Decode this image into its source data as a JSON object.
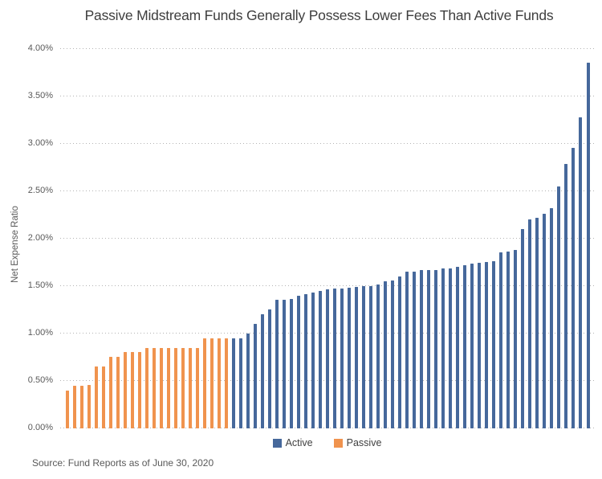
{
  "header": {
    "title": "Passive Midstream Funds Generally Possess Lower Fees Than Active Funds"
  },
  "y_axis": {
    "label": "Net Expense Ratio",
    "ticks": [
      "4.00%",
      "3.50%",
      "3.00%",
      "2.50%",
      "2.00%",
      "1.50%",
      "1.00%",
      "0.50%",
      "0.00%"
    ]
  },
  "legend": {
    "items": [
      {
        "label": "Active",
        "color": "#46689B"
      },
      {
        "label": "Passive",
        "color": "#F0934E"
      }
    ]
  },
  "footer": {
    "source": "Source: Fund Reports as of June 30, 2020"
  },
  "chart_data": {
    "type": "bar",
    "title": "Passive Midstream Funds Generally Possess Lower Fees Than Active Funds",
    "xlabel": "",
    "ylabel": "Net Expense Ratio",
    "ylim": [
      0,
      4.0
    ],
    "ytick_step": 0.5,
    "ytick_format": "0.00%",
    "grid": "dotted-horizontal",
    "legend_position": "bottom-center",
    "x_axis_labels": "none (one bar per fund, sorted ascending by expense ratio; passive funds cluster at the low end)",
    "series": [
      {
        "name": "Passive",
        "color": "#F0934E",
        "values": [
          0.4,
          0.45,
          0.45,
          0.46,
          0.65,
          0.65,
          0.75,
          0.75,
          0.8,
          0.8,
          0.8,
          0.85,
          0.85,
          0.85,
          0.85,
          0.85,
          0.85,
          0.85,
          0.85,
          0.95,
          0.95,
          0.95,
          0.95
        ]
      },
      {
        "name": "Active",
        "color": "#46689B",
        "values": [
          0.95,
          0.95,
          1.0,
          1.1,
          1.2,
          1.25,
          1.35,
          1.35,
          1.36,
          1.4,
          1.41,
          1.43,
          1.45,
          1.46,
          1.47,
          1.47,
          1.48,
          1.49,
          1.5,
          1.5,
          1.51,
          1.55,
          1.56,
          1.6,
          1.65,
          1.65,
          1.67,
          1.67,
          1.67,
          1.68,
          1.68,
          1.7,
          1.72,
          1.73,
          1.74,
          1.75,
          1.76,
          1.85,
          1.86,
          1.88,
          2.1,
          2.2,
          2.22,
          2.26,
          2.32,
          2.55,
          2.78,
          2.95,
          3.27,
          3.85
        ]
      }
    ]
  },
  "colors": {
    "active_bar": "#46689B",
    "passive_bar": "#F0934E",
    "gridline": "#b3b3b3",
    "title_text": "#3e3e3e",
    "axis_text": "#595959"
  }
}
